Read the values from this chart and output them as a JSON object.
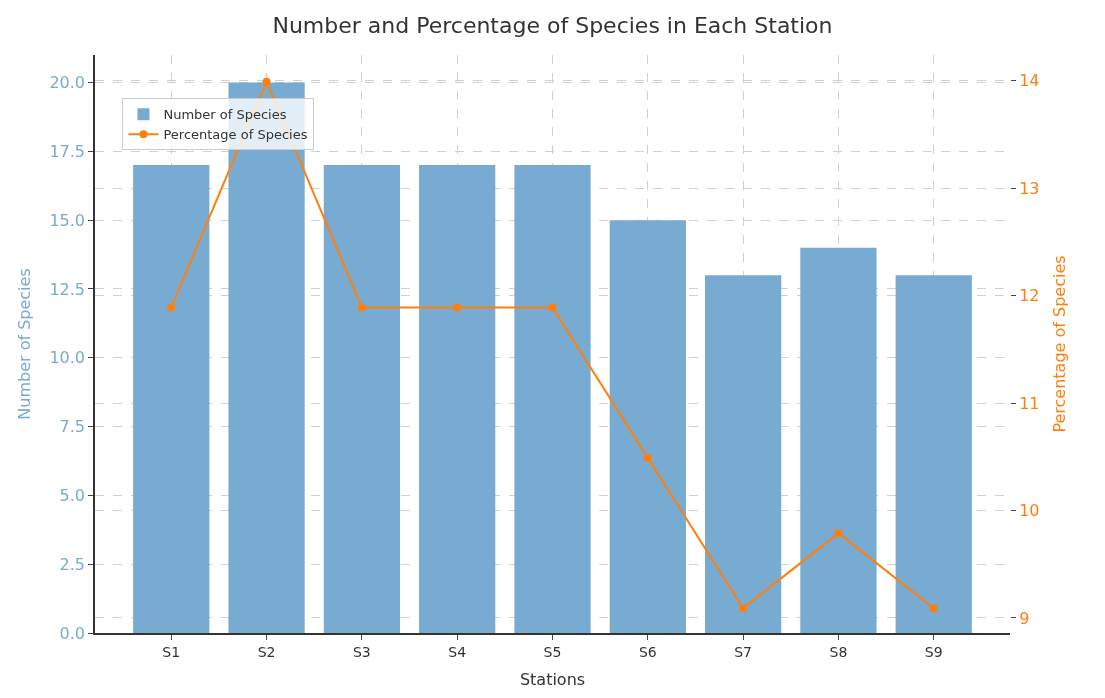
{
  "chart_data": {
    "type": "bar",
    "title": "Number and Percentage of Species in Each Station",
    "xlabel": "Stations",
    "ylabel": "Number of Species",
    "y2label": "Percentage of Species",
    "categories": [
      "S1",
      "S2",
      "S3",
      "S4",
      "S5",
      "S6",
      "S7",
      "S8",
      "S9"
    ],
    "series": [
      {
        "name": "Number of Species",
        "color": "#78abd1",
        "values": [
          17,
          20,
          17,
          17,
          17,
          15,
          13,
          14,
          13
        ]
      },
      {
        "name": "Percentage of Species",
        "type": "line",
        "axis": "y2",
        "color": "#ff7f0e",
        "marker": "circle",
        "values": [
          11.89,
          13.99,
          11.89,
          11.89,
          11.89,
          10.49,
          9.09,
          9.79,
          9.09
        ]
      }
    ],
    "ylim": [
      0,
      21
    ],
    "yticks": [
      {
        "value": 0,
        "label": "0.0"
      },
      {
        "value": 2.5,
        "label": "2.5"
      },
      {
        "value": 5,
        "label": "5.0"
      },
      {
        "value": 7.5,
        "label": "7.5"
      },
      {
        "value": 10,
        "label": "10.0"
      },
      {
        "value": 12.5,
        "label": "12.5"
      },
      {
        "value": 15,
        "label": "15.0"
      },
      {
        "value": 17.5,
        "label": "17.5"
      },
      {
        "value": 20,
        "label": "20.0"
      }
    ],
    "y2lim": [
      8.86,
      14.24
    ],
    "y2ticks": [
      9,
      10,
      11,
      12,
      13,
      14
    ],
    "grid": true,
    "legend": "top left"
  }
}
